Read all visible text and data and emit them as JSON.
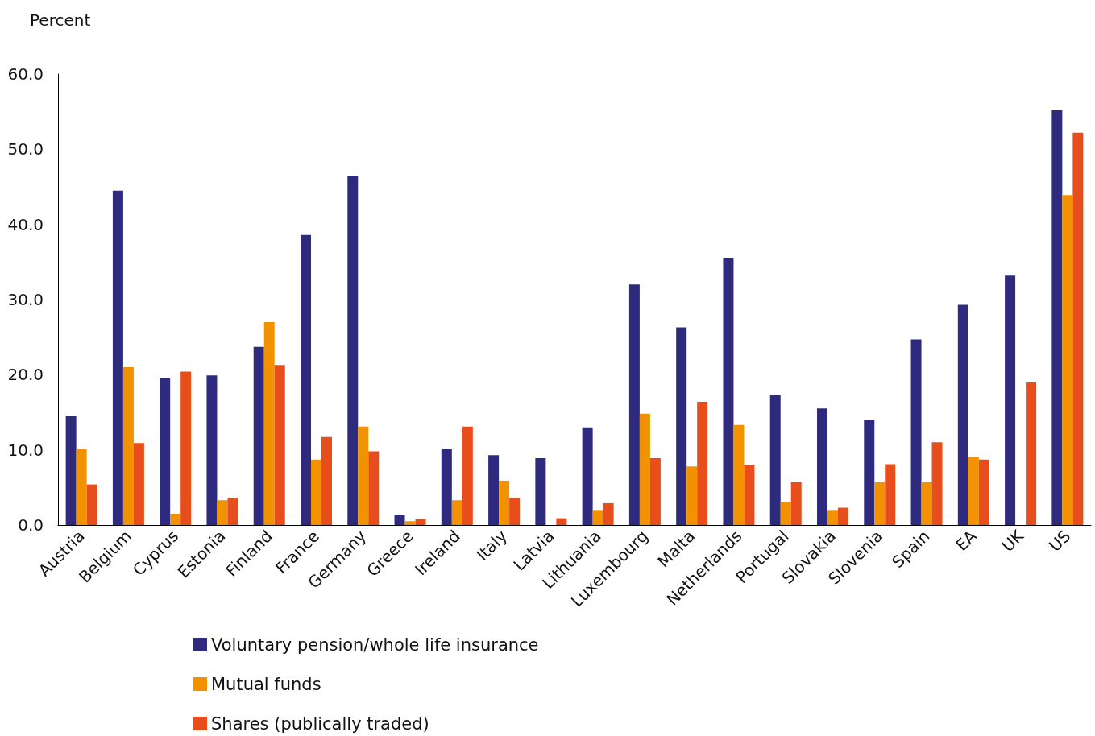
{
  "chart_data": {
    "type": "bar",
    "ylabel": "Percent",
    "categories": [
      "Austria",
      "Belgium",
      "Cyprus",
      "Estonia",
      "Finland",
      "France",
      "Germany",
      "Greece",
      "Ireland",
      "Italy",
      "Latvia",
      "Lithuania",
      "Luxembourg",
      "Malta",
      "Netherlands",
      "Portugal",
      "Slovakia",
      "Slovenia",
      "Spain",
      "EA",
      "UK",
      "US"
    ],
    "series": [
      {
        "name": "Voluntary pension/whole life insurance",
        "color": "#2e2a7e",
        "values": [
          14.5,
          44.5,
          19.5,
          19.9,
          23.7,
          38.6,
          46.5,
          1.3,
          10.1,
          9.3,
          8.9,
          13.0,
          32.0,
          26.3,
          35.5,
          17.3,
          15.5,
          14.0,
          24.7,
          29.3,
          33.2,
          55.2
        ]
      },
      {
        "name": "Mutual funds",
        "color": "#f39200",
        "values": [
          10.1,
          21.0,
          1.5,
          3.3,
          27.0,
          8.7,
          13.1,
          0.5,
          3.3,
          5.9,
          null,
          2.0,
          14.8,
          7.8,
          13.3,
          3.0,
          2.0,
          5.7,
          5.7,
          9.1,
          null,
          43.9
        ]
      },
      {
        "name": "Shares (publically traded)",
        "color": "#e84e1b",
        "values": [
          5.4,
          10.9,
          20.4,
          3.6,
          21.3,
          11.7,
          9.8,
          0.8,
          13.1,
          3.6,
          0.9,
          2.9,
          8.9,
          16.4,
          8.0,
          5.7,
          2.3,
          8.1,
          11.0,
          8.7,
          19.0,
          52.2
        ]
      }
    ],
    "ylim": [
      0,
      60
    ],
    "yticks": [
      {
        "value": 0,
        "label": "0.0"
      },
      {
        "value": 10,
        "label": "10.0"
      },
      {
        "value": 20,
        "label": "20.0"
      },
      {
        "value": 30,
        "label": "30.0"
      },
      {
        "value": 40,
        "label": "40.0"
      },
      {
        "value": 50,
        "label": "50.0"
      },
      {
        "value": 60,
        "label": "60.0"
      }
    ],
    "grid": false,
    "legend": "bottom left"
  }
}
